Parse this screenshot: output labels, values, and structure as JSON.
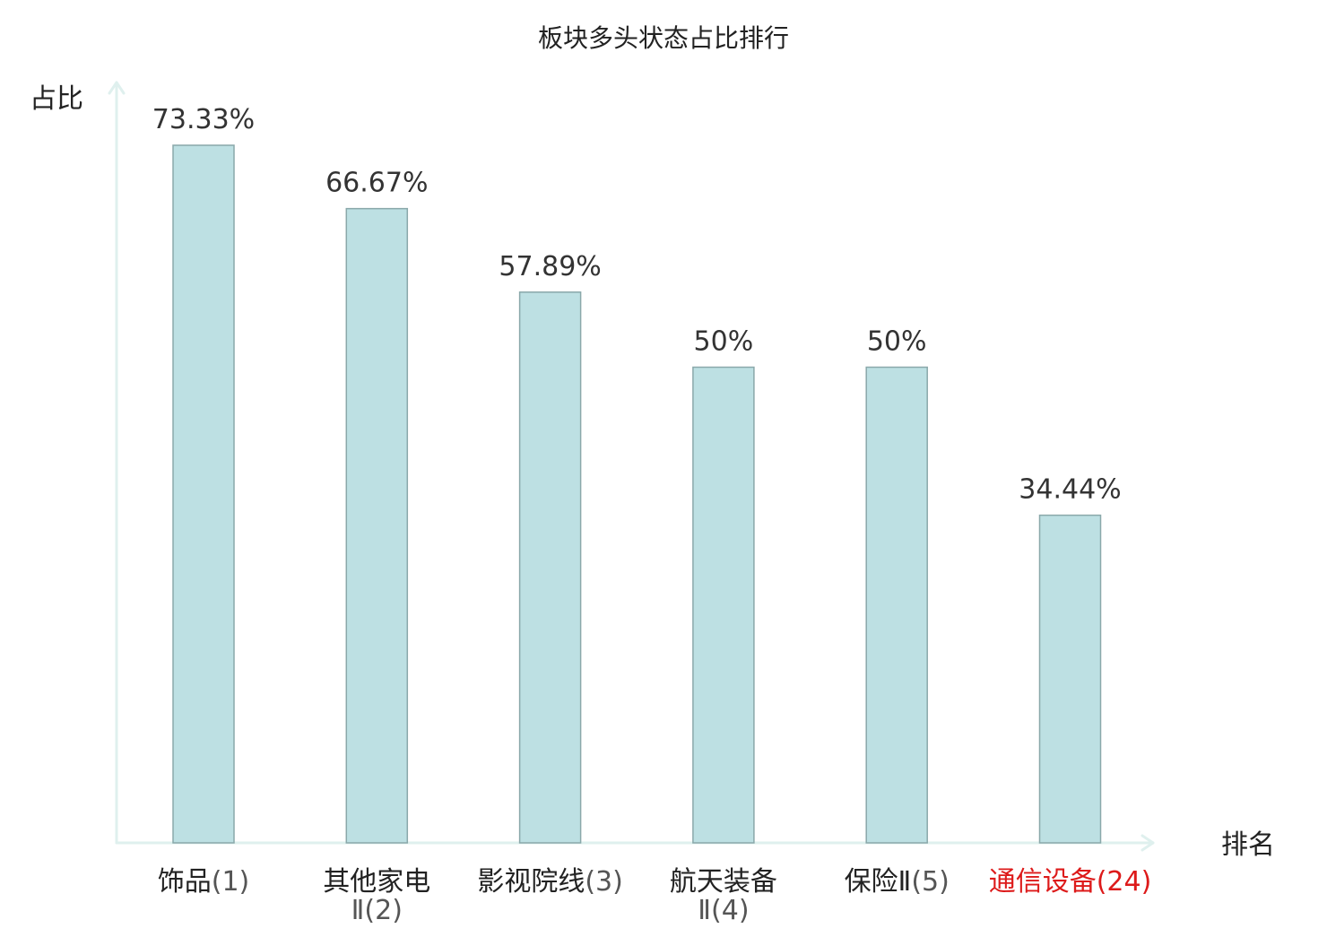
{
  "chart_data": {
    "type": "bar",
    "title": "板块多头状态占比排行",
    "ylabel": "占比",
    "xlabel": "排名",
    "ylim": [
      0,
      80
    ],
    "grid": false,
    "categories": [
      {
        "name": "饰品",
        "rank": "(1)",
        "highlight": false
      },
      {
        "name": "其他家电Ⅱ",
        "rank": "(2)",
        "highlight": false
      },
      {
        "name": "影视院线",
        "rank": "(3)",
        "highlight": false
      },
      {
        "name": "航天装备Ⅱ",
        "rank": "(4)",
        "highlight": false
      },
      {
        "name": "保险Ⅱ",
        "rank": "(5)",
        "highlight": false
      },
      {
        "name": "通信设备",
        "rank": "(24)",
        "highlight": true
      }
    ],
    "values": [
      73.33,
      66.67,
      57.89,
      50,
      50,
      34.44
    ],
    "value_labels": [
      "73.33%",
      "66.67%",
      "57.89%",
      "50%",
      "50%",
      "34.44%"
    ]
  },
  "colors": {
    "bar_fill": "#bde0e3",
    "bar_stroke": "#8aa8aa",
    "axis": "#dff0ee",
    "label": "#222222",
    "rank": "#555555",
    "highlight": "#dd1a1a"
  }
}
